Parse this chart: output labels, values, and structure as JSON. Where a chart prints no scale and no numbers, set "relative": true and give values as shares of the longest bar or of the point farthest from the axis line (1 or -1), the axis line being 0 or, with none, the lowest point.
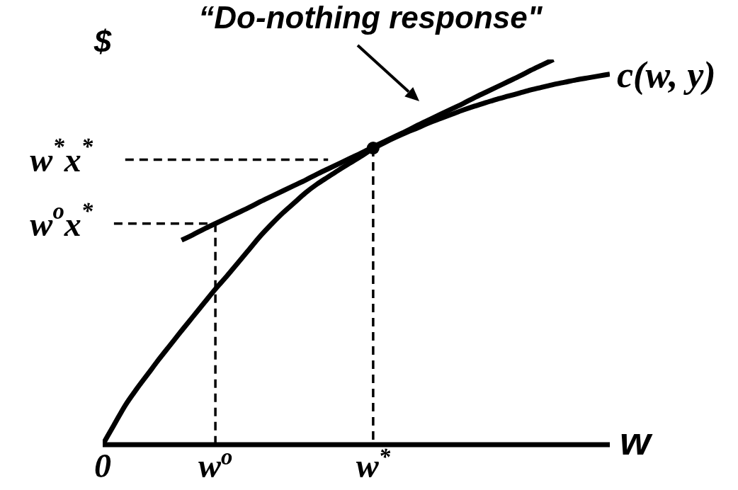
{
  "chart_data": {
    "type": "line",
    "relative": true,
    "annotations": [
      "“Do-nothing response\""
    ],
    "xlabel": "w",
    "ylabel": "$",
    "categories": [
      "0",
      null,
      null,
      null,
      null,
      null,
      null,
      null,
      null,
      null,
      "w$^{o}$",
      null,
      null,
      null,
      null,
      null,
      null,
      null,
      null,
      null,
      null,
      null,
      null,
      null,
      "w$^{*}$",
      null,
      null,
      null,
      null,
      null,
      null,
      null,
      null,
      null,
      null,
      null,
      null,
      null,
      null,
      null,
      null,
      null,
      null,
      null,
      null,
      null
    ],
    "series": [
      {
        "name": "c(w, y)",
        "color": "#000000",
        "values": [
          0,
          0.051,
          0.102,
          0.144,
          0.183,
          0.222,
          0.259,
          0.296,
          0.332,
          0.368,
          0.404,
          0.437,
          0.472,
          0.507,
          0.542,
          0.573,
          0.602,
          0.628,
          0.654,
          0.676,
          0.695,
          0.714,
          0.732,
          0.75,
          0.769,
          0.784,
          0.798,
          0.811,
          0.823,
          0.836,
          0.847,
          0.858,
          0.869,
          0.879,
          0.888,
          0.897,
          0.905,
          0.913,
          0.921,
          0.928,
          0.935,
          0.941,
          0.947,
          0.952,
          0.957,
          0.962
        ]
      },
      {
        "color": "#000000",
        "values": [
          null,
          null,
          null,
          null,
          null,
          null,
          null,
          0.531,
          0.545,
          0.56,
          0.574,
          0.588,
          0.602,
          0.616,
          0.631,
          0.645,
          0.659,
          0.673,
          0.687,
          0.702,
          0.716,
          0.73,
          0.744,
          0.758,
          0.773,
          0.787,
          0.801,
          0.815,
          0.83,
          0.844,
          0.858,
          0.872,
          0.886,
          0.901,
          0.915,
          0.929,
          0.943,
          0.957,
          0.972,
          0.986,
          1,
          null,
          null,
          null,
          null,
          null
        ]
      },
      {
        "name": "w$^{*}$x$^{*}$",
        "line_style": "dashed",
        "color": "#000000",
        "values": [
          null,
          null,
          0.74,
          0.74,
          0.74,
          0.74,
          0.74,
          0.74,
          0.74,
          0.74,
          0.74,
          0.74,
          0.74,
          0.74,
          0.74,
          0.74,
          0.74,
          0.74,
          0.74,
          0.74,
          0.74,
          null,
          null,
          null,
          null,
          null,
          null,
          null,
          null,
          null,
          null,
          null,
          null,
          null,
          null,
          null,
          null,
          null,
          null,
          null,
          null,
          null,
          null,
          null,
          null,
          null
        ]
      },
      {
        "name": "w$^{o}$x$^{*}$",
        "line_style": "dashed",
        "color": "#000000",
        "values": [
          null,
          0.574,
          0.574,
          0.574,
          0.574,
          0.574,
          0.574,
          0.574,
          0.574,
          0.574,
          0.574,
          null,
          null,
          null,
          null,
          null,
          null,
          null,
          null,
          null,
          null,
          null,
          null,
          null,
          null,
          null,
          null,
          null,
          null,
          null,
          null,
          null,
          null,
          null,
          null,
          null,
          null,
          null,
          null,
          null,
          null,
          null,
          null,
          null,
          null,
          null
        ]
      },
      {
        "line_style": "dashed",
        "color": "#000000",
        "x": [
          "w$^{o}$",
          "w$^{o}$"
        ],
        "values": [
          0.574,
          0
        ]
      },
      {
        "line_style": "dashed",
        "color": "#000000",
        "x": [
          "w$^{*}$",
          "w$^{*}$"
        ],
        "values": [
          0.77,
          0
        ]
      },
      {
        "type": "scatter",
        "marker": "circle",
        "color": "#000000",
        "x": [
          "w$^{*}$"
        ],
        "values": [
          0.77
        ]
      }
    ]
  }
}
